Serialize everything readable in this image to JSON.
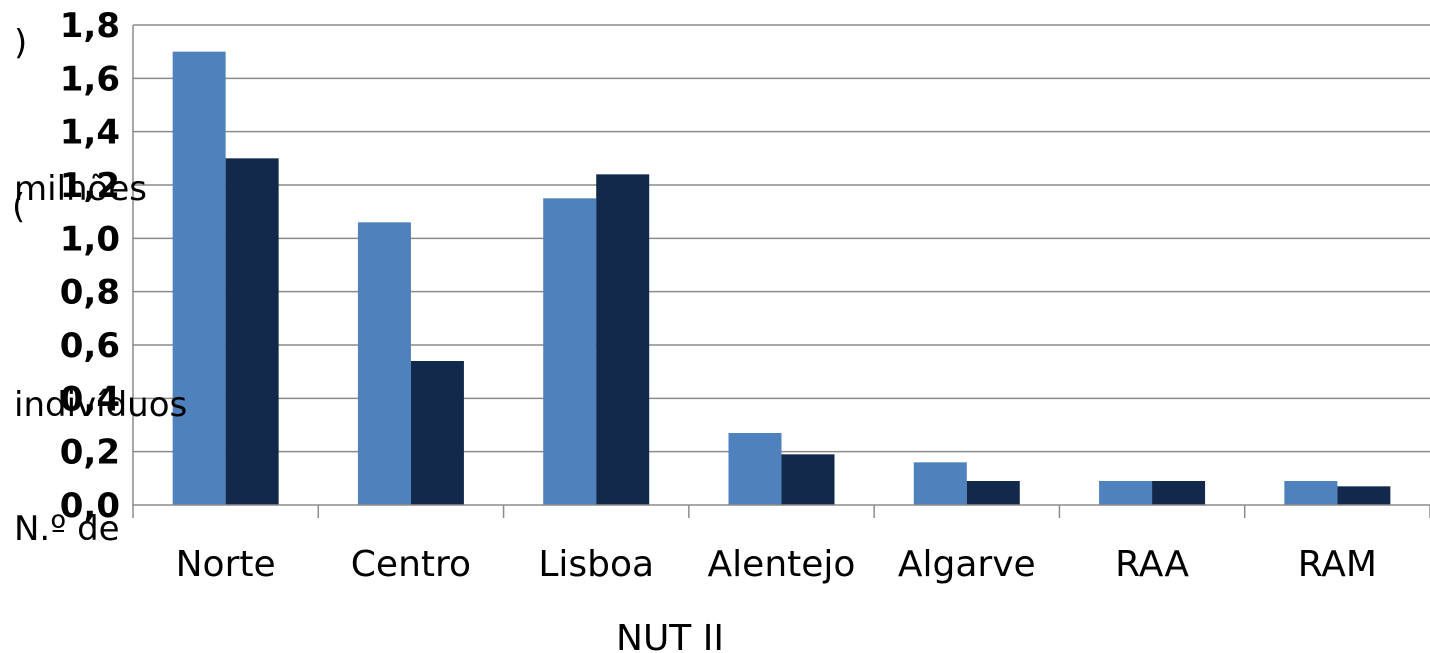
{
  "chart_data": {
    "type": "bar",
    "title": "",
    "xlabel": "NUT II",
    "ylabel_parts": [
      "N.º de",
      "indivíduos",
      "(",
      "milhões",
      ")"
    ],
    "categories": [
      "Norte",
      "Centro",
      "Lisboa",
      "Alentejo",
      "Algarve",
      "RAA",
      "RAM"
    ],
    "series": [
      {
        "color": "#4f81bd",
        "values": [
          1.7,
          1.06,
          1.15,
          0.27,
          0.16,
          0.09,
          0.09
        ]
      },
      {
        "color": "#13294b",
        "values": [
          1.3,
          0.54,
          1.24,
          0.19,
          0.09,
          0.09,
          0.07
        ]
      }
    ],
    "ylim": [
      0,
      1.8
    ],
    "yticks": [
      "0,0",
      "0,2",
      "0,4",
      "0,6",
      "0,8",
      "1,0",
      "1,2",
      "1,4",
      "1,6",
      "1,8"
    ],
    "grid": true,
    "legend": "none"
  }
}
